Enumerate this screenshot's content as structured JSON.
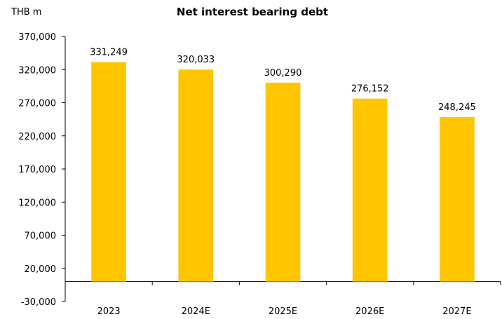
{
  "chart_data": {
    "type": "bar",
    "title": "Net interest bearing debt",
    "unit_label": "THB m",
    "categories": [
      "2023",
      "2024E",
      "2025E",
      "2026E",
      "2027E"
    ],
    "values": [
      331249,
      320033,
      300290,
      276152,
      248245
    ],
    "data_labels": [
      "331,249",
      "320,033",
      "300,290",
      "276,152",
      "248,245"
    ],
    "ylim": [
      -30000,
      370000
    ],
    "y_ticks": [
      -30000,
      20000,
      70000,
      120000,
      170000,
      220000,
      270000,
      320000,
      370000
    ],
    "y_tick_labels": [
      "-30,000",
      "20,000",
      "70,000",
      "120,000",
      "170,000",
      "220,000",
      "270,000",
      "320,000",
      "370,000"
    ],
    "bar_color": "#FFC600",
    "grid": false,
    "legend": "none"
  }
}
